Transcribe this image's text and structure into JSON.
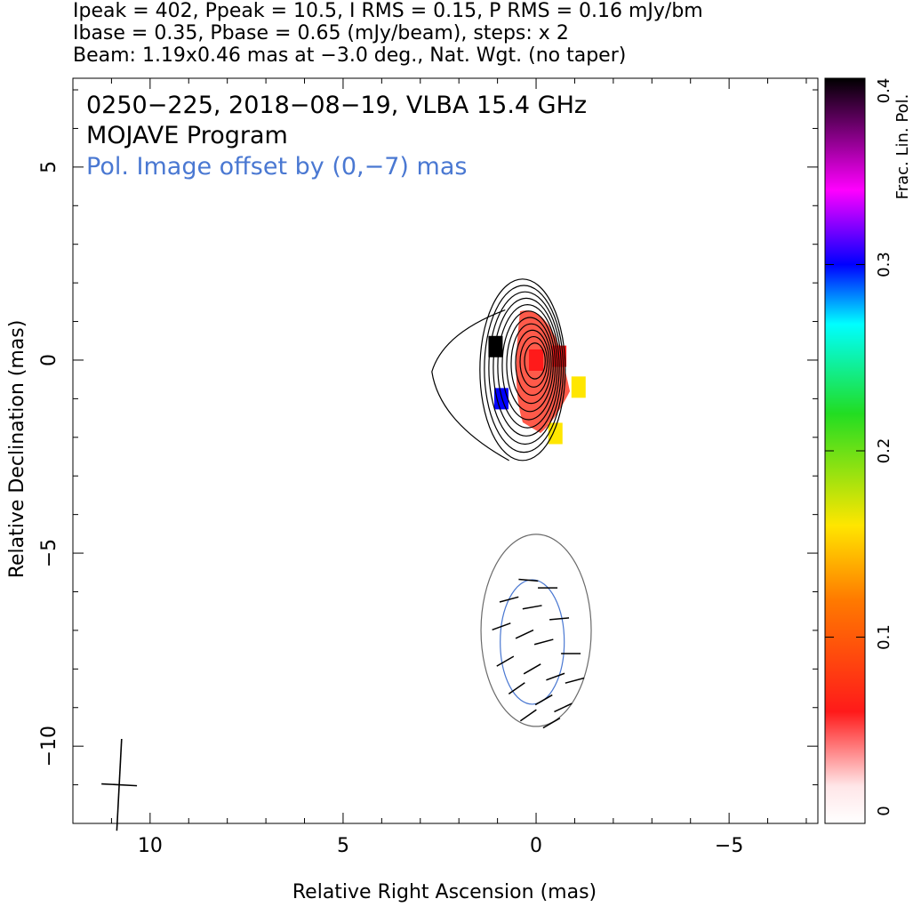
{
  "header": {
    "line1": "Ipeak = 402, Ppeak = 10.5, I RMS = 0.15, P RMS = 0.16 mJy/bm",
    "line2": "Ibase = 0.35, Pbase = 0.65 (mJy/beam), steps: x 2",
    "line3": "Beam: 1.19x0.46 mas at −3.0 deg., Nat. Wgt. (no taper)"
  },
  "chart_data": {
    "type": "heatmap",
    "title": "0250−225, 2018−08−19, VLBA 15.4 GHz",
    "subtitle": "MOJAVE Program",
    "annotation": "Pol. Image offset by (0,−7) mas",
    "annotation_color": "#4a78d2",
    "xlabel": "Relative Right Ascension (mas)",
    "ylabel": "Relative Declination (mas)",
    "xlim": [
      12,
      -7.3
    ],
    "ylim": [
      -12,
      7.3
    ],
    "x_ticks": [
      10,
      5,
      0,
      -5
    ],
    "x_tick_labels": [
      "10",
      "5",
      "0",
      "−5"
    ],
    "y_ticks": [
      5,
      0,
      -5,
      -10
    ],
    "y_tick_labels": [
      "5",
      "0",
      "−5",
      "−10"
    ],
    "colorbar": {
      "label": "Frac. Lin. Pol.",
      "range": [
        0,
        0.4
      ],
      "ticks": [
        0,
        0.1,
        0.2,
        0.3,
        0.4
      ],
      "tick_labels": [
        "0",
        "0.1",
        "0.2",
        "0.3",
        "0.4"
      ]
    },
    "contour_levels_mJy_per_beam": [
      0.35,
      0.7,
      1.4,
      2.8,
      5.6,
      11.2,
      22.4,
      44.8,
      89.6,
      179.2,
      358.4
    ],
    "beam": {
      "major_mas": 1.19,
      "minor_mas": 0.46,
      "pa_deg": -3.0,
      "center": [
        10.8,
        -11
      ]
    },
    "core": {
      "x": 0,
      "y": 0
    },
    "polarization_offset": {
      "x": 0,
      "y": -7
    },
    "frac_pol_regions": [
      {
        "x": 0.0,
        "y": 0.0,
        "value": 0.06
      },
      {
        "x": -0.6,
        "y": 0.1,
        "value": 0.11
      },
      {
        "x": -1.1,
        "y": -0.7,
        "value": 0.2
      },
      {
        "x": -0.5,
        "y": -1.9,
        "value": 0.18
      },
      {
        "x": 0.9,
        "y": -1.0,
        "value": 0.33
      },
      {
        "x": 1.05,
        "y": 0.35,
        "value": 0.4
      }
    ],
    "evpa_vectors": [
      {
        "x": 0.2,
        "y": -5.7,
        "angle": 5
      },
      {
        "x": -0.3,
        "y": -5.9,
        "angle": 0
      },
      {
        "x": 0.7,
        "y": -6.2,
        "angle": -15
      },
      {
        "x": 0.1,
        "y": -6.4,
        "angle": -10
      },
      {
        "x": -0.6,
        "y": -6.7,
        "angle": -5
      },
      {
        "x": 0.9,
        "y": -6.9,
        "angle": -20
      },
      {
        "x": 0.3,
        "y": -7.1,
        "angle": -25
      },
      {
        "x": -0.2,
        "y": -7.3,
        "angle": -15
      },
      {
        "x": -0.9,
        "y": -7.6,
        "angle": 0
      },
      {
        "x": 0.8,
        "y": -7.8,
        "angle": -30
      },
      {
        "x": 0.1,
        "y": -8.0,
        "angle": -30
      },
      {
        "x": -0.5,
        "y": -8.2,
        "angle": -20
      },
      {
        "x": -1.0,
        "y": -8.3,
        "angle": -15
      },
      {
        "x": 0.5,
        "y": -8.5,
        "angle": -35
      },
      {
        "x": -0.2,
        "y": -8.8,
        "angle": -30
      },
      {
        "x": -0.7,
        "y": -9.0,
        "angle": -25
      },
      {
        "x": 0.2,
        "y": -9.2,
        "angle": -35
      },
      {
        "x": -0.4,
        "y": -9.4,
        "angle": -30
      }
    ]
  }
}
